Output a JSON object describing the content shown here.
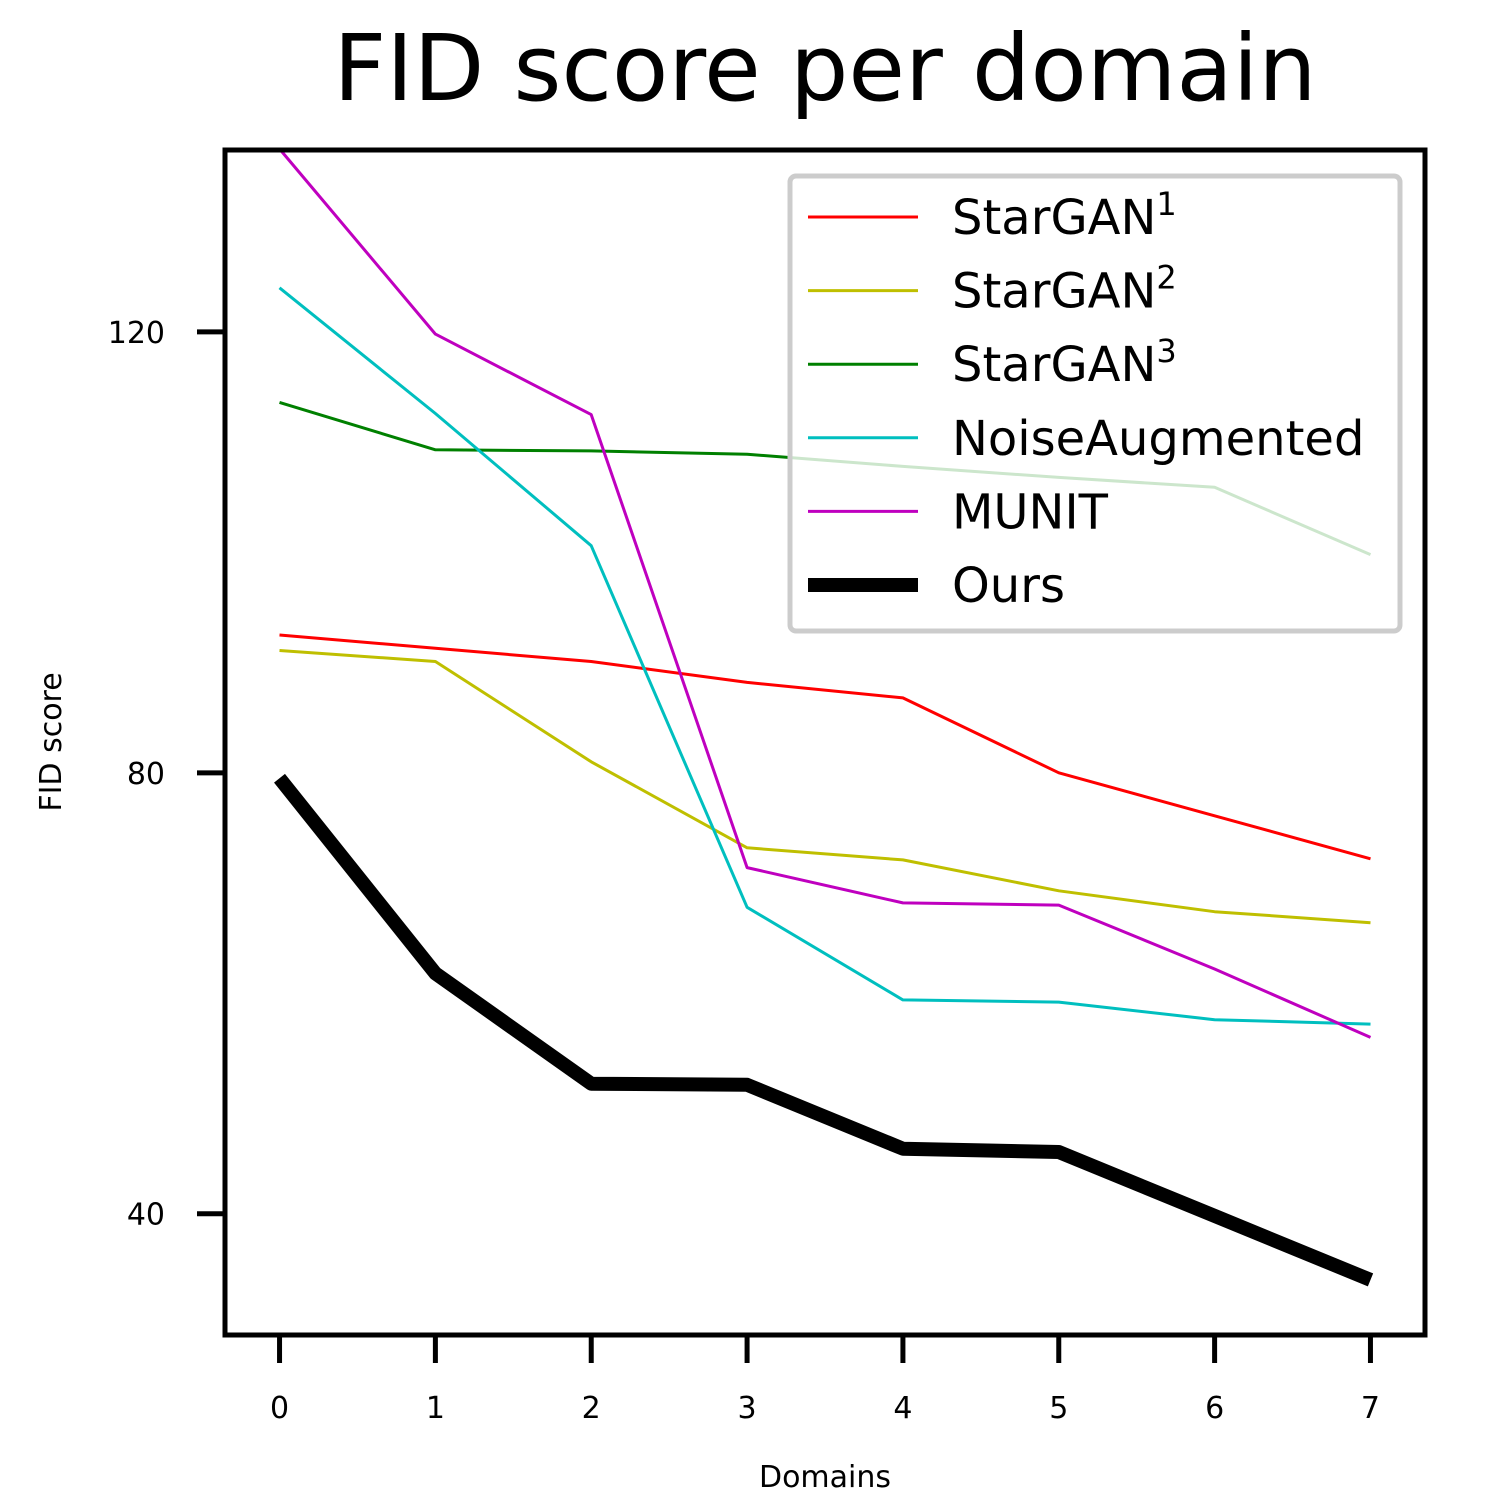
{
  "chart_data": {
    "type": "line",
    "title": "FID score per domain",
    "xlabel": "Domains",
    "ylabel": "FID score",
    "x": [
      0,
      1,
      2,
      3,
      4,
      5,
      6,
      7
    ],
    "x_ticks": [
      "0",
      "1",
      "2",
      "3",
      "4",
      "5",
      "6",
      "7"
    ],
    "y_ticks": [
      40,
      80,
      120
    ],
    "y_tick_labels": [
      "40",
      "80",
      "120"
    ],
    "xlim": [
      -0.35,
      7.35
    ],
    "ylim": [
      29,
      136.5
    ],
    "grid": false,
    "legend_position": "top-right",
    "series": [
      {
        "name": "StarGAN",
        "sup": "1",
        "color": "#ff0000",
        "values": [
          92.5,
          91.3,
          90.1,
          88.2,
          86.8,
          80.0,
          76.1,
          72.2
        ]
      },
      {
        "name": "StarGAN",
        "sup": "2",
        "color": "#bfbf00",
        "values": [
          91.1,
          90.1,
          81.0,
          73.2,
          72.1,
          69.3,
          67.4,
          66.4
        ]
      },
      {
        "name": "StarGAN",
        "sup": "3",
        "color": "#008000",
        "values": [
          113.6,
          109.3,
          109.2,
          108.9,
          107.8,
          106.8,
          105.9,
          99.8
        ]
      },
      {
        "name": "NoiseAugmented",
        "sup": "",
        "color": "#00bfbf",
        "values": [
          124.0,
          112.6,
          100.6,
          67.8,
          59.4,
          59.2,
          57.6,
          57.2
        ]
      },
      {
        "name": "MUNIT",
        "sup": "",
        "color": "#bf00bf",
        "values": [
          136.6,
          119.8,
          112.5,
          71.4,
          68.2,
          68.0,
          62.2,
          56.0
        ]
      },
      {
        "name": "Ours",
        "sup": "",
        "color": "#000000",
        "values": [
          79.5,
          61.8,
          51.8,
          51.7,
          45.9,
          45.6,
          39.8,
          34.0
        ]
      }
    ]
  }
}
